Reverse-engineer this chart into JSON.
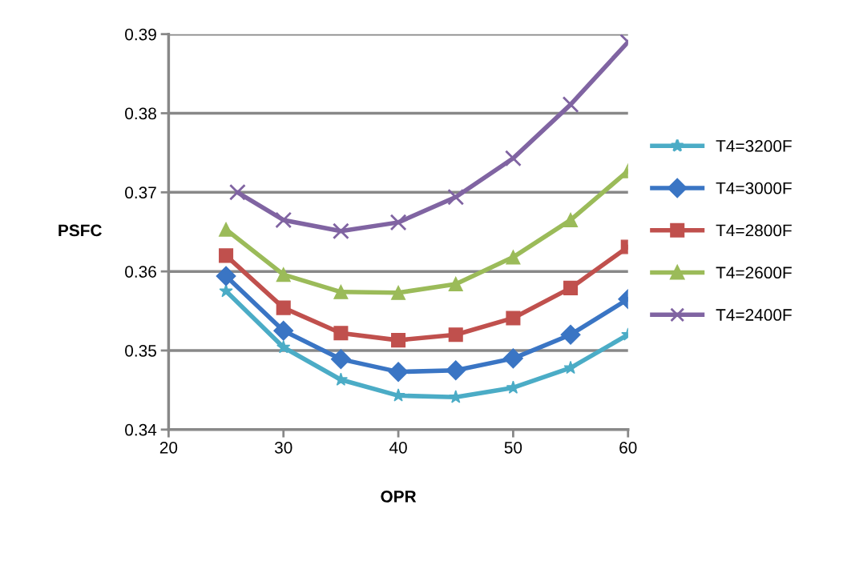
{
  "chart_data": {
    "type": "line",
    "xlabel": "OPR",
    "ylabel": "PSFC",
    "xlim": [
      20,
      60
    ],
    "xticks": [
      20,
      30,
      40,
      50,
      60
    ],
    "ylim": [
      0.34,
      0.39
    ],
    "yticks": [
      0.34,
      0.35,
      0.36,
      0.37,
      0.38,
      0.39
    ],
    "grid": "y",
    "legend": "right",
    "series": [
      {
        "name": "T4=3200F",
        "color": "#4bacc6",
        "marker": "star",
        "x": [
          25,
          30,
          35,
          40,
          45,
          50,
          55,
          60
        ],
        "values": [
          0.3575,
          0.3504,
          0.3463,
          0.3443,
          0.3441,
          0.3453,
          0.3478,
          0.352
        ]
      },
      {
        "name": "T4=3000F",
        "color": "#3a75c4",
        "marker": "diamond",
        "x": [
          25,
          30,
          35,
          40,
          45,
          50,
          55,
          60
        ],
        "values": [
          0.3594,
          0.3525,
          0.3489,
          0.3473,
          0.3475,
          0.349,
          0.352,
          0.3565
        ]
      },
      {
        "name": "T4=2800F",
        "color": "#c0504d",
        "marker": "square",
        "x": [
          25,
          30,
          35,
          40,
          45,
          50,
          55,
          60
        ],
        "values": [
          0.362,
          0.3554,
          0.3522,
          0.3513,
          0.352,
          0.3541,
          0.3579,
          0.3631
        ]
      },
      {
        "name": "T4=2600F",
        "color": "#9bbb59",
        "marker": "triangle",
        "x": [
          25,
          30,
          35,
          40,
          45,
          50,
          55,
          60
        ],
        "values": [
          0.3653,
          0.3596,
          0.3574,
          0.3573,
          0.3584,
          0.3618,
          0.3665,
          0.3727
        ]
      },
      {
        "name": "T4=2400F",
        "color": "#8064a2",
        "marker": "cross",
        "x": [
          26,
          30,
          35,
          40,
          45,
          50,
          55,
          60
        ],
        "values": [
          0.37,
          0.3665,
          0.3651,
          0.3662,
          0.3694,
          0.3743,
          0.3811,
          0.389
        ]
      }
    ]
  }
}
